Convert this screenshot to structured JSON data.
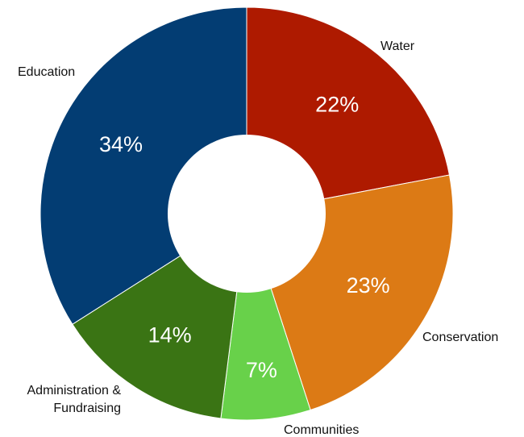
{
  "chart_data": {
    "type": "pie",
    "donut": true,
    "categories": [
      "Water",
      "Conservation",
      "Communities",
      "Administration & Fundraising",
      "Education"
    ],
    "category_lines": [
      [
        "Water"
      ],
      [
        "Conservation"
      ],
      [
        "Communities"
      ],
      [
        "Administration &",
        "Fundraising"
      ],
      [
        "Education"
      ]
    ],
    "values": [
      22,
      23,
      7,
      14,
      34
    ],
    "value_labels": [
      "22%",
      "23%",
      "7%",
      "14%",
      "34%"
    ],
    "colors": [
      "#ae1a00",
      "#dc7a15",
      "#68d14a",
      "#3a7414",
      "#033d73"
    ],
    "start": "12 o'clock",
    "direction": "clockwise",
    "title": "",
    "legend": "none"
  }
}
